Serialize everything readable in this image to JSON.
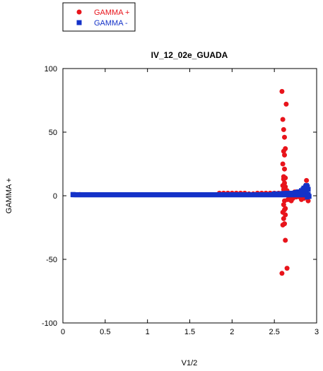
{
  "chart_data": {
    "type": "scatter",
    "title": "IV_12_02e_GUADA",
    "xlabel": "V1/2",
    "ylabel": "GAMMA +",
    "xlim": [
      0,
      3
    ],
    "ylim": [
      -100,
      100
    ],
    "x_ticks": [
      0,
      0.5,
      1,
      1.5,
      2,
      2.5,
      3
    ],
    "x_tick_labels": [
      "0",
      "0.5",
      "1",
      "1.5",
      "2",
      "2.5",
      "3"
    ],
    "y_ticks": [
      -100,
      -50,
      0,
      50,
      100
    ],
    "y_tick_labels": [
      "-100",
      "-50",
      "0",
      "50",
      "100"
    ],
    "grid": false,
    "legend_position": "top-left",
    "series": [
      {
        "name": "GAMMA +",
        "color": "#e8141b",
        "marker": "circle",
        "band": {
          "x_start": 0.2,
          "x_end": 2.3,
          "step": 0.02,
          "y": 0.8
        },
        "points": [
          [
            0.2,
            1
          ],
          [
            1.85,
            2
          ],
          [
            1.9,
            2
          ],
          [
            1.95,
            2
          ],
          [
            2.0,
            2
          ],
          [
            2.05,
            2
          ],
          [
            2.1,
            2
          ],
          [
            2.15,
            2
          ],
          [
            2.2,
            1.5
          ],
          [
            2.25,
            1.5
          ],
          [
            2.3,
            2
          ],
          [
            2.35,
            2
          ],
          [
            2.4,
            2
          ],
          [
            2.45,
            2
          ],
          [
            2.5,
            2
          ],
          [
            2.55,
            2
          ],
          [
            2.59,
            82
          ],
          [
            2.6,
            60
          ],
          [
            2.61,
            52
          ],
          [
            2.62,
            46
          ],
          [
            2.63,
            37
          ],
          [
            2.61,
            35
          ],
          [
            2.62,
            32
          ],
          [
            2.6,
            25
          ],
          [
            2.62,
            21
          ],
          [
            2.61,
            15
          ],
          [
            2.63,
            14
          ],
          [
            2.61,
            13
          ],
          [
            2.62,
            10
          ],
          [
            2.6,
            8
          ],
          [
            2.63,
            7
          ],
          [
            2.61,
            5
          ],
          [
            2.62,
            3
          ],
          [
            2.6,
            2
          ],
          [
            2.64,
            72
          ],
          [
            2.65,
            4
          ],
          [
            2.66,
            2
          ],
          [
            2.62,
            -4
          ],
          [
            2.61,
            -7
          ],
          [
            2.63,
            -10
          ],
          [
            2.62,
            -11
          ],
          [
            2.6,
            -13
          ],
          [
            2.63,
            -15
          ],
          [
            2.61,
            -18
          ],
          [
            2.62,
            -22
          ],
          [
            2.6,
            -23
          ],
          [
            2.63,
            -35
          ],
          [
            2.59,
            -61
          ],
          [
            2.65,
            -57
          ],
          [
            2.66,
            -3
          ],
          [
            2.68,
            -2
          ],
          [
            2.7,
            -4
          ],
          [
            2.72,
            -2
          ],
          [
            2.74,
            3
          ],
          [
            2.76,
            -1
          ],
          [
            2.78,
            2
          ],
          [
            2.8,
            3
          ],
          [
            2.82,
            -3
          ],
          [
            2.84,
            5
          ],
          [
            2.85,
            -2
          ],
          [
            2.87,
            8
          ],
          [
            2.88,
            12
          ],
          [
            2.89,
            6
          ],
          [
            2.9,
            -4
          ],
          [
            2.86,
            3
          ],
          [
            2.75,
            1
          ],
          [
            2.7,
            0
          ],
          [
            2.8,
            -1
          ]
        ]
      },
      {
        "name": "GAMMA -",
        "color": "#1432c8",
        "marker": "square",
        "band": {
          "x_start": 0.12,
          "x_end": 2.9,
          "step": 0.01,
          "y": 0.8
        },
        "points": [
          [
            0.12,
            1
          ],
          [
            2.5,
            1.5
          ],
          [
            2.55,
            1.5
          ],
          [
            2.6,
            1.8
          ],
          [
            2.65,
            2
          ],
          [
            2.7,
            2
          ],
          [
            2.75,
            2.5
          ],
          [
            2.78,
            3
          ],
          [
            2.8,
            3
          ],
          [
            2.82,
            4
          ],
          [
            2.84,
            5
          ],
          [
            2.85,
            6
          ],
          [
            2.86,
            5.5
          ],
          [
            2.87,
            7
          ],
          [
            2.88,
            8
          ],
          [
            2.89,
            7
          ],
          [
            2.9,
            5
          ],
          [
            2.88,
            4
          ],
          [
            2.9,
            0
          ],
          [
            2.89,
            -1
          ],
          [
            2.91,
            -0.5
          ],
          [
            2.83,
            2
          ],
          [
            2.76,
            1
          ]
        ]
      }
    ]
  }
}
